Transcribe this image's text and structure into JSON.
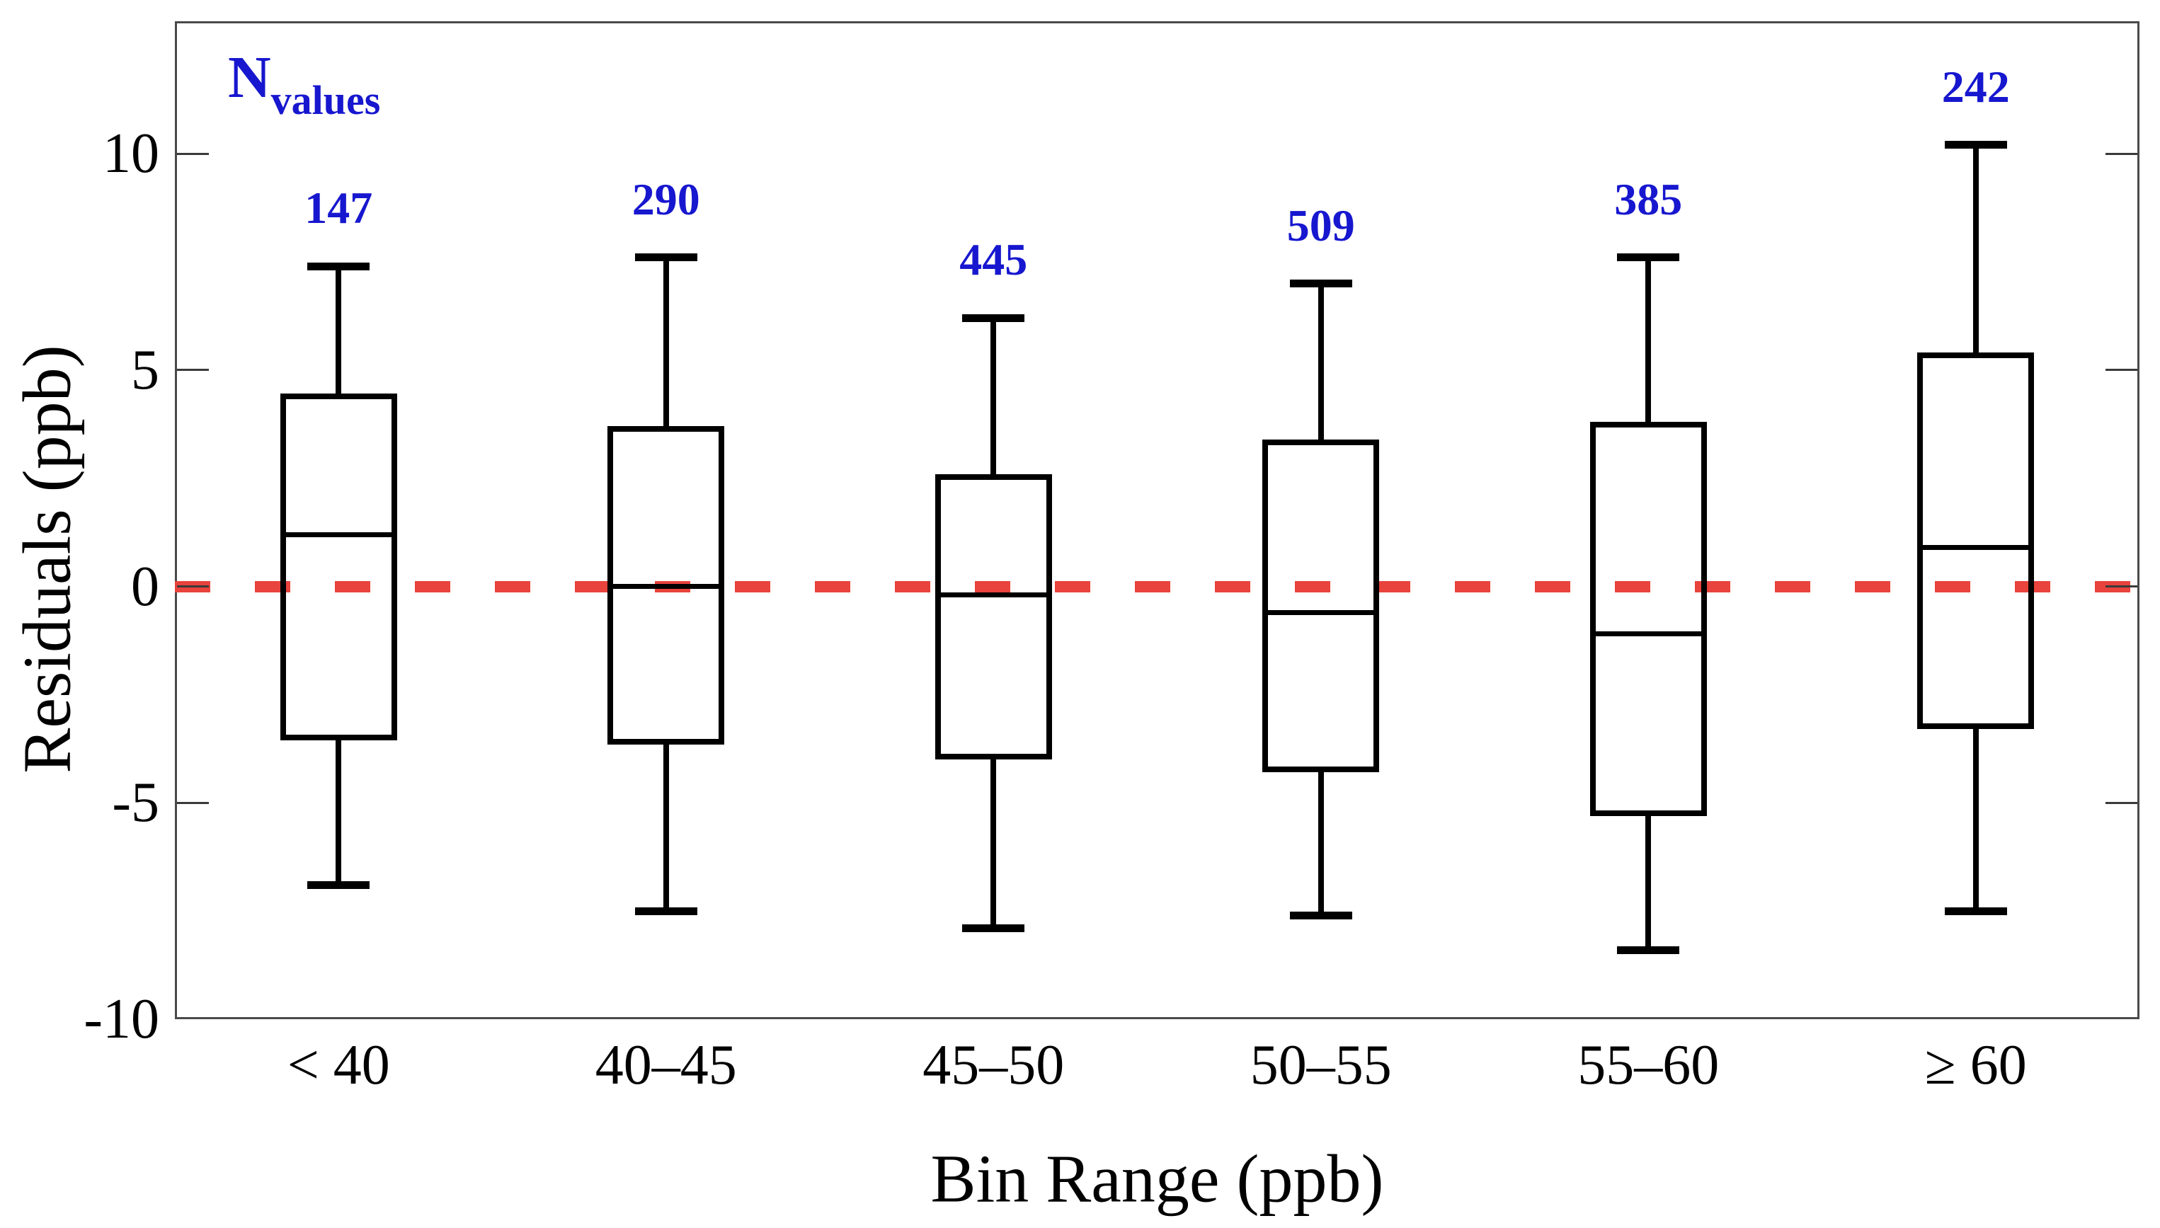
{
  "chart_data": {
    "type": "box",
    "title": "",
    "xlabel": "Bin Range (ppb)",
    "ylabel": "Residuals (ppb)",
    "n_header": {
      "label": "N",
      "subscript": "values"
    },
    "categories": [
      "< 40",
      "40–45",
      "45–50",
      "50–55",
      "55–60",
      "≥ 60"
    ],
    "n_values": [
      147,
      290,
      445,
      509,
      385,
      242
    ],
    "series": [
      {
        "category": "< 40",
        "n": 147,
        "whisker_low": -6.9,
        "q1": -3.55,
        "median": 1.2,
        "q3": 4.45,
        "whisker_high": 7.4
      },
      {
        "category": "40–45",
        "n": 290,
        "whisker_low": -7.5,
        "q1": -3.65,
        "median": 0.0,
        "q3": 3.7,
        "whisker_high": 7.6
      },
      {
        "category": "45–50",
        "n": 445,
        "whisker_low": -7.9,
        "q1": -4.0,
        "median": -0.2,
        "q3": 2.6,
        "whisker_high": 6.2
      },
      {
        "category": "50–55",
        "n": 509,
        "whisker_low": -7.6,
        "q1": -4.3,
        "median": -0.6,
        "q3": 3.4,
        "whisker_high": 7.0
      },
      {
        "category": "55–60",
        "n": 385,
        "whisker_low": -8.4,
        "q1": -5.3,
        "median": -1.1,
        "q3": 3.8,
        "whisker_high": 7.6
      },
      {
        "category": "≥ 60",
        "n": 242,
        "whisker_low": -7.5,
        "q1": -3.3,
        "median": 0.9,
        "q3": 5.4,
        "whisker_high": 10.2
      }
    ],
    "yticks": [
      10,
      5,
      0,
      -5,
      -10
    ],
    "ylim": [
      -10,
      13.06
    ],
    "grid": false,
    "legend": "none",
    "reference_line": {
      "y": 0,
      "style": "dashed",
      "color": "#e8433c"
    },
    "colors": {
      "box_edge": "#000000",
      "n_label_blue": "#1717cf",
      "reference_red": "#e8433c",
      "frame_gray": "#4a4a4a",
      "text": "#000000"
    }
  }
}
